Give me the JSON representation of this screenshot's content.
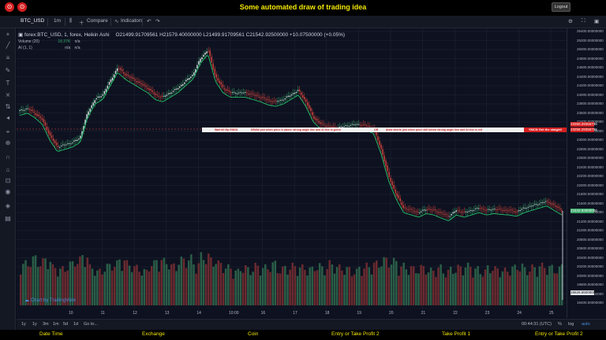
{
  "banner": {
    "title": "Some automated draw of trading idea",
    "logout_label": "Logout"
  },
  "toolbar": {
    "symbol": "BTC_USD",
    "interval": "1m",
    "compare_label": "Compare",
    "indicators_label": "Indicators"
  },
  "legend": {
    "main": "forex:BTC_USD, 1, forex, Heikin Ashi",
    "ohlc": "O21499.91709561  H21579.40000000  L21499.91709561  C21542.92500000  +10.07500000 (+0.05%)",
    "volume": "Volume (20)",
    "volume_value": "18.37K",
    "volume_na": "n/a",
    "ai": "AI (1, 1)",
    "ai_na1": "n/a",
    "ai_na2": "n/a"
  },
  "watermark": "Chart by TradingView",
  "annotation": {
    "t1": "Wait till flip ENDS",
    "t2": "DRAW just when price is above strong angle line and AI line is green",
    "t3": "OR",
    "t4": "draw shorts just when price still below strong angle line and AI line is red",
    "t5": "YMCN Get the staight!"
  },
  "price_axis": {
    "ticks": [
      "25400.00000000",
      "25200.00000000",
      "25000.00000000",
      "24800.00000000",
      "24600.00000000",
      "24400.00000000",
      "24200.00000000",
      "24000.00000000",
      "23800.00000000",
      "23600.00000000",
      "23400.00000000",
      "23200.00000000",
      "23000.00000000",
      "22800.00000000",
      "22600.00000000",
      "22400.00000000",
      "22200.00000000",
      "22000.00000000",
      "21800.00000000",
      "21600.00000000",
      "21400.00000000",
      "21200.00000000",
      "21000.00000000",
      "20800.00000000",
      "20600.00000000",
      "20400.00000000",
      "20200.00000000",
      "20000.00000000",
      "19800.00000000",
      "19600.00000000",
      "19400.00000000"
    ],
    "tag_red1": "23250.29356736",
    "tag_red2": "23256.29356736",
    "tag_low": "19629.65000000",
    "tag_last": "21542.92500000"
  },
  "time_axis": {
    "labels": [
      "10",
      "11",
      "12",
      "13",
      "14",
      "10:00",
      "16",
      "17",
      "18",
      "19",
      "20",
      "21",
      "22",
      "23",
      "24",
      "25"
    ]
  },
  "controls": {
    "ranges": [
      "1y",
      "1y",
      "3m",
      "1m",
      "5d",
      "1d",
      "Go to..."
    ],
    "time": "00:44:31 (UTC)",
    "percent": "%",
    "log": "log",
    "auto": "auto"
  },
  "footer": {
    "items": [
      "Date Time",
      "Exchange",
      "Coin",
      "Entry or Take Profit 2",
      "Take Profit 1",
      "Entry or Take Profit 2"
    ]
  },
  "chart_data": {
    "type": "candlestick",
    "title": "",
    "xlabel": "",
    "ylabel": "",
    "ylim": [
      19400,
      25400
    ],
    "x_labels": [
      "10",
      "11",
      "12",
      "13",
      "14",
      "10:00",
      "16",
      "17",
      "18",
      "19",
      "20",
      "21",
      "22",
      "23",
      "24",
      "25"
    ],
    "price_series": [
      23650,
      23700,
      23600,
      23450,
      23100,
      22850,
      22900,
      22950,
      23050,
      23600,
      23900,
      24000,
      24300,
      24600,
      24450,
      24350,
      24250,
      24150,
      24000,
      23950,
      24050,
      24150,
      24300,
      24450,
      24800,
      25000,
      24400,
      24150,
      24050,
      24050,
      24050,
      24000,
      23950,
      23880,
      23850,
      23900,
      24000,
      24100,
      23850,
      23500,
      23350,
      23300,
      23280,
      23300,
      23340,
      23350,
      23320,
      23250,
      22800,
      22200,
      21800,
      21500,
      21450,
      21400,
      21480,
      21450,
      21380,
      21320,
      21450,
      21400,
      21450,
      21500,
      21450,
      21480,
      21460,
      21450,
      21420,
      21500,
      21550,
      21600,
      21650,
      21550,
      21450
    ],
    "volume_series": [
      0.55,
      0.62,
      0.58,
      0.6,
      0.5,
      0.48,
      0.55,
      0.6,
      0.65,
      0.5,
      0.45,
      0.52,
      0.55,
      0.6,
      0.55,
      0.5,
      0.45,
      0.55,
      0.6,
      0.58,
      0.52,
      0.6,
      0.62,
      0.55,
      0.65,
      0.6,
      0.55,
      0.5,
      0.45,
      0.5,
      0.48,
      0.52,
      0.5,
      0.55,
      0.48,
      0.5,
      0.52,
      0.5,
      0.48,
      0.52,
      0.5,
      0.55,
      0.5,
      0.48,
      0.45,
      0.5,
      0.52,
      0.55,
      0.6,
      0.58,
      0.52,
      0.5,
      0.48,
      0.5,
      0.46,
      0.5,
      0.45,
      0.48,
      0.5,
      0.52,
      0.48,
      0.45,
      0.5,
      0.48,
      0.46,
      0.5,
      0.52,
      0.48,
      0.5,
      0.52,
      0.5,
      0.48,
      0.52
    ],
    "colors": {
      "up": "#3aa86a",
      "down": "#d9453c",
      "grid": "#1f2536",
      "ai_green": "#23c26a",
      "ai_red": "#e63b3b"
    }
  }
}
